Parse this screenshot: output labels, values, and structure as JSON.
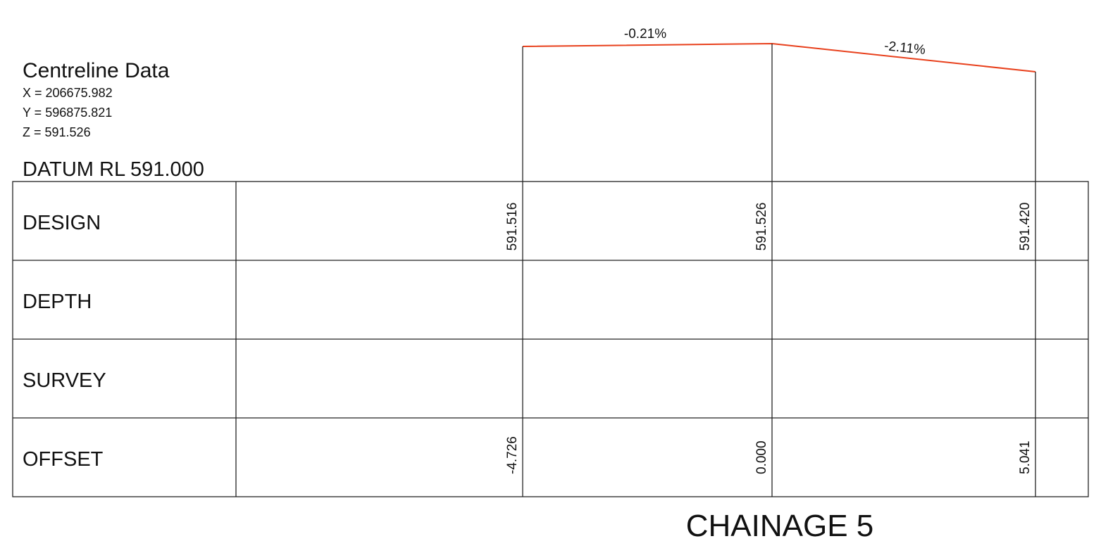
{
  "header": {
    "title": "Centreline Data",
    "coords": [
      "X = 206675.982",
      "Y = 596875.821",
      "Z = 591.526"
    ],
    "datum": "DATUM RL 591.000"
  },
  "grades": [
    "-0.21%",
    "-2.11%"
  ],
  "table": {
    "rows": [
      {
        "label": "DESIGN",
        "values": [
          "591.516",
          "591.526",
          "591.420"
        ]
      },
      {
        "label": "DEPTH",
        "values": []
      },
      {
        "label": "SURVEY",
        "values": []
      },
      {
        "label": "OFFSET",
        "values": [
          "-4.726",
          "0.000",
          "5.041"
        ]
      }
    ]
  },
  "footer": "CHAINAGE 5"
}
